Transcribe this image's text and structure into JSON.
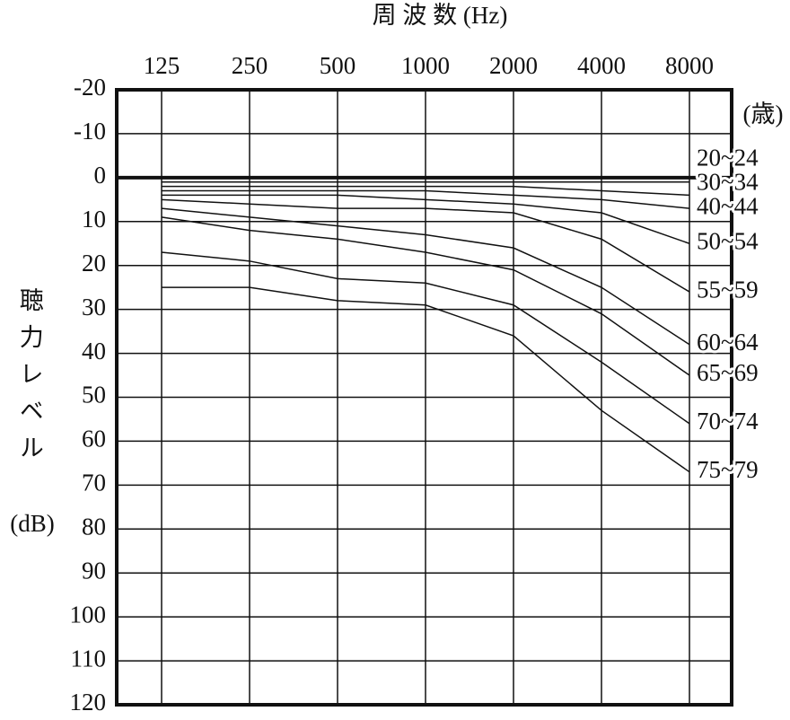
{
  "chart_data": {
    "type": "line",
    "title": "周 波 数 (Hz)",
    "y_label": "聴力レベル",
    "y_unit": "(dB)",
    "legend_title": "(歳)",
    "categories": [
      "125",
      "250",
      "500",
      "1000",
      "2000",
      "4000",
      "8000"
    ],
    "ylim": [
      -20,
      120
    ],
    "yticks": [
      -20,
      -10,
      0,
      10,
      20,
      30,
      40,
      50,
      60,
      70,
      80,
      90,
      100,
      110,
      120
    ],
    "y_inverted": true,
    "grid": true,
    "series": [
      {
        "name": "20~24",
        "color": "#111111",
        "values": [
          1,
          1,
          1,
          1,
          1,
          1,
          1
        ]
      },
      {
        "name": "30~34",
        "color": "#111111",
        "values": [
          2,
          2,
          2,
          2,
          2,
          3,
          4
        ]
      },
      {
        "name": "40~44",
        "color": "#111111",
        "values": [
          3,
          3,
          3,
          3,
          4,
          5,
          7
        ]
      },
      {
        "name": "50~54",
        "color": "#111111",
        "values": [
          4,
          4,
          4,
          5,
          6,
          8,
          15
        ]
      },
      {
        "name": "55~59",
        "color": "#111111",
        "values": [
          5,
          6,
          7,
          7,
          8,
          14,
          26
        ]
      },
      {
        "name": "60~64",
        "color": "#111111",
        "values": [
          7,
          9,
          11,
          13,
          16,
          25,
          38
        ]
      },
      {
        "name": "65~69",
        "color": "#111111",
        "values": [
          9,
          12,
          14,
          17,
          21,
          31,
          45
        ]
      },
      {
        "name": "70~74",
        "color": "#111111",
        "values": [
          17,
          19,
          23,
          24,
          29,
          42,
          56
        ]
      },
      {
        "name": "75~79",
        "color": "#111111",
        "values": [
          25,
          25,
          28,
          29,
          36,
          53,
          67
        ]
      }
    ]
  }
}
